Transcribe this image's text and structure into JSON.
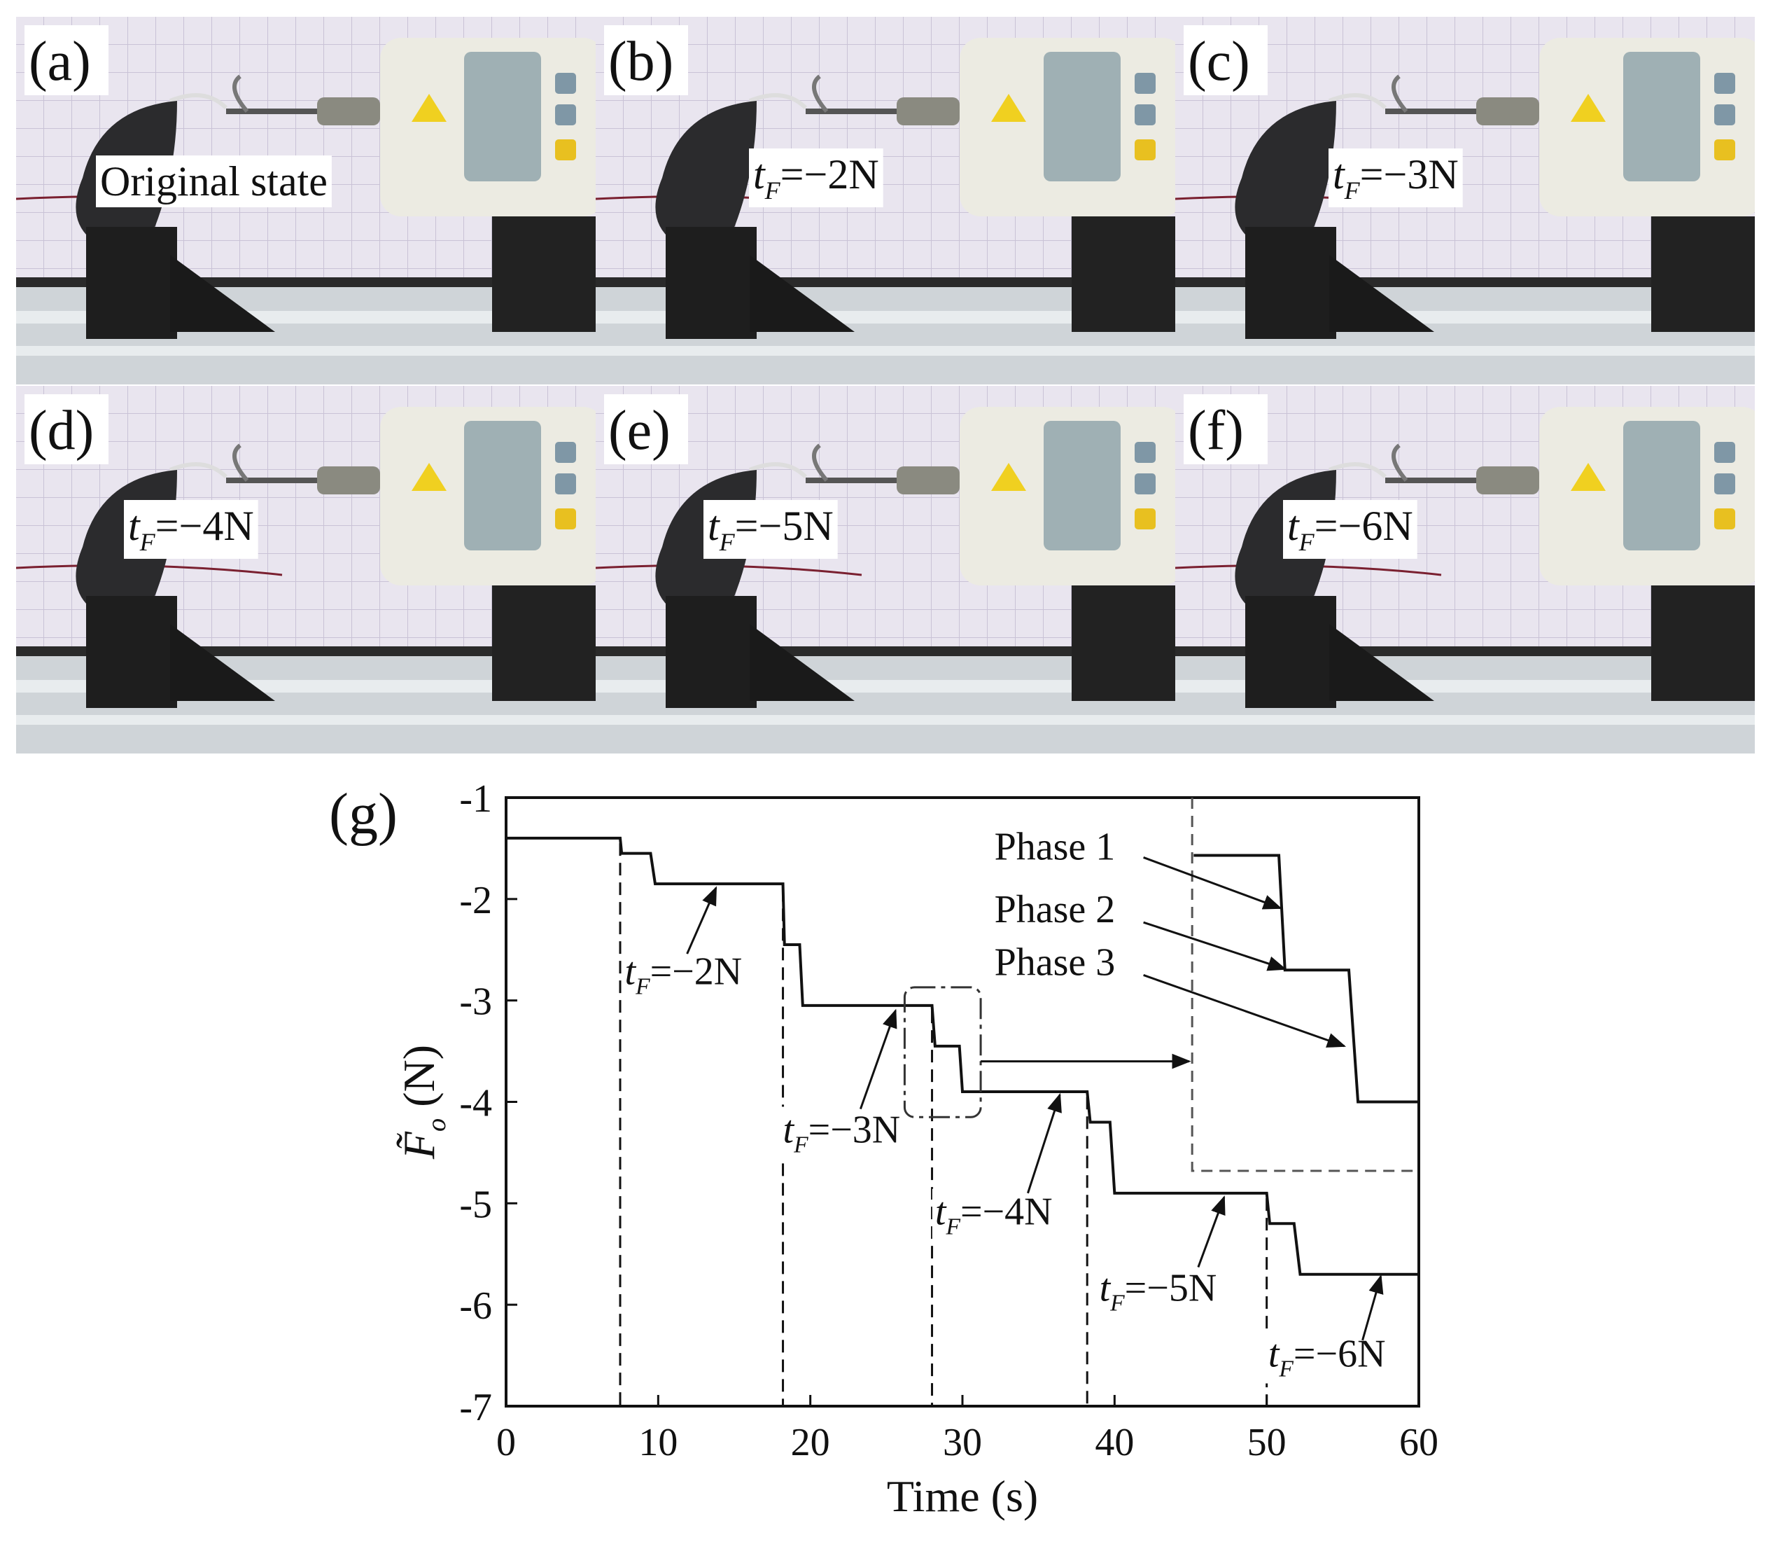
{
  "photos": [
    {
      "label": "(a)",
      "caption": [
        "Original state"
      ]
    },
    {
      "label": "(b)",
      "caption": [
        "t",
        "F",
        "=−2N"
      ]
    },
    {
      "label": "(c)",
      "caption": [
        "t",
        "F",
        "=−3N"
      ]
    },
    {
      "label": "(d)",
      "caption": [
        "t",
        "F",
        "=−4N"
      ]
    },
    {
      "label": "(e)",
      "caption": [
        "t",
        "F",
        "=−5N"
      ]
    },
    {
      "label": "(f)",
      "caption": [
        "t",
        "F",
        "=−6N"
      ]
    }
  ],
  "chart_data": {
    "type": "line",
    "panel_label": "(g)",
    "xlabel": "Time (s)",
    "ylabel": [
      "F̃",
      "o",
      " (N)"
    ],
    "xlim": [
      0,
      60
    ],
    "xticks": [
      0,
      10,
      20,
      30,
      40,
      50,
      60
    ],
    "ylim": [
      -7,
      -1
    ],
    "yticks": [
      -1,
      -2,
      -3,
      -4,
      -5,
      -6,
      -7
    ],
    "series": [
      {
        "color": "#111111",
        "x": [
          0,
          7.5,
          7.6,
          9.5,
          9.8,
          18.2,
          18.3,
          19.3,
          19.5,
          28,
          28.2,
          29.8,
          30,
          38.2,
          38.4,
          39.7,
          40,
          50,
          50.2,
          51.8,
          52.2,
          60
        ],
        "values": [
          -1.4,
          -1.4,
          -1.55,
          -1.55,
          -1.85,
          -1.85,
          -2.45,
          -2.45,
          -3.05,
          -3.05,
          -3.45,
          -3.45,
          -3.9,
          -3.9,
          -4.2,
          -4.2,
          -4.9,
          -4.9,
          -5.2,
          -5.2,
          -5.7,
          -5.7
        ]
      },
      {
        "color": "#111111",
        "x": [
          45.2,
          50.8,
          51.2,
          55.4,
          56,
          60
        ],
        "values": [
          -1.57,
          -1.57,
          -2.7,
          -2.7,
          -4.0,
          -4.0
        ]
      }
    ],
    "vlines": [
      {
        "x": 7.5,
        "y": -1.45
      },
      {
        "x": 18.2,
        "y": -1.9
      },
      {
        "x": 28,
        "y": -3.1
      },
      {
        "x": 38.2,
        "y": -3.95
      },
      {
        "x": 50,
        "y": -4.95
      }
    ],
    "annotations": [
      {
        "text": [
          "t",
          "F",
          "=−2N"
        ],
        "x": 7.8,
        "y": -2.84,
        "arrow": [
          11.9,
          -2.54,
          13.8,
          -1.89
        ]
      },
      {
        "text": [
          "t",
          "F",
          "=−3N"
        ],
        "x": 18.2,
        "y": -4.4,
        "arrow": [
          23.3,
          -4.07,
          25.6,
          -3.1
        ]
      },
      {
        "text": [
          "t",
          "F",
          "=−4N"
        ],
        "x": 28.2,
        "y": -5.21,
        "arrow": [
          34.3,
          -4.9,
          36.4,
          -3.93
        ]
      },
      {
        "text": [
          "t",
          "F",
          "=−5N"
        ],
        "x": 39,
        "y": -5.96,
        "arrow": [
          45.5,
          -5.63,
          47.2,
          -4.94
        ]
      },
      {
        "text": [
          "t",
          "F",
          "=−6N"
        ],
        "x": 50.1,
        "y": -6.61,
        "arrow": [
          56.3,
          -6.35,
          57.5,
          -5.72
        ]
      },
      {
        "text": [
          "Phase 1"
        ],
        "x": 32.1,
        "y": -1.61,
        "arrow": [
          41.9,
          -1.59,
          50.9,
          -2.09
        ]
      },
      {
        "text": [
          "Phase 2"
        ],
        "x": 32.1,
        "y": -2.23,
        "arrow": [
          41.9,
          -2.23,
          51.2,
          -2.69
        ]
      },
      {
        "text": [
          "Phase 3"
        ],
        "x": 32.1,
        "y": -2.75,
        "arrow": [
          41.9,
          -2.75,
          55.1,
          -3.45
        ]
      }
    ],
    "zoom_box": [
      26.2,
      31.2,
      -2.87,
      -4.15
    ],
    "zoom_arrow": [
      31.2,
      -3.6,
      44.9,
      -3.6
    ],
    "inset_box": [
      45.1,
      -4.68
    ]
  }
}
